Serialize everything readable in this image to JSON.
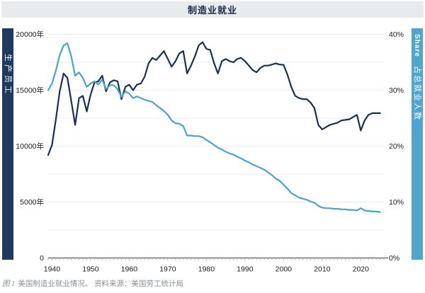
{
  "title_bar": {
    "title": "制造业就业"
  },
  "left_axis_bar": {
    "label": "生产员工",
    "color": "#1f3a5e"
  },
  "right_axis_bar": {
    "label_en": "Share",
    "label_zh": "占总就业人数",
    "color": "#4fa5cf"
  },
  "caption": {
    "figure_label": "图 1",
    "text": "美国制造业就业情况。 资料来源：美国劳工统计局"
  },
  "colors": {
    "title_bg": "#e8ebee",
    "title_text": "#1b2b4c",
    "employment_line": "#19304f",
    "share_line": "#4aa2c9",
    "gridline": "#e8edf0",
    "axis_line": "#3c3c3c",
    "tick": "#b5b5b5",
    "tick_label": "#1a1a1a"
  },
  "chart_data": {
    "type": "line",
    "title": "制造业就业",
    "x": [
      1939,
      1940,
      1941,
      1942,
      1943,
      1944,
      1945,
      1946,
      1947,
      1948,
      1949,
      1950,
      1951,
      1952,
      1953,
      1954,
      1955,
      1956,
      1957,
      1958,
      1959,
      1960,
      1961,
      1962,
      1963,
      1964,
      1965,
      1966,
      1967,
      1968,
      1969,
      1970,
      1971,
      1972,
      1973,
      1974,
      1975,
      1976,
      1977,
      1978,
      1979,
      1980,
      1981,
      1982,
      1983,
      1984,
      1985,
      1986,
      1987,
      1988,
      1989,
      1990,
      1991,
      1992,
      1993,
      1994,
      1995,
      1996,
      1997,
      1998,
      1999,
      2000,
      2001,
      2002,
      2003,
      2004,
      2005,
      2006,
      2007,
      2008,
      2009,
      2010,
      2011,
      2012,
      2013,
      2014,
      2015,
      2016,
      2017,
      2018,
      2019,
      2020,
      2021,
      2022,
      2023,
      2024,
      2025
    ],
    "series": [
      {
        "name": "生产员工",
        "axis": "left",
        "color": "#19304f",
        "values": [
          9200,
          10100,
          12400,
          14900,
          16500,
          16100,
          14000,
          11900,
          14300,
          14500,
          13100,
          14600,
          15700,
          15800,
          16300,
          14900,
          15700,
          15900,
          15800,
          14200,
          15300,
          15500,
          15000,
          15500,
          15600,
          16200,
          17400,
          17900,
          17700,
          18100,
          18500,
          17800,
          17100,
          17600,
          18300,
          18500,
          16500,
          17200,
          18000,
          19000,
          19300,
          18700,
          18600,
          17400,
          16500,
          17600,
          17800,
          17600,
          17500,
          17800,
          17900,
          17600,
          17200,
          16800,
          16600,
          17000,
          17200,
          17200,
          17300,
          17400,
          17300,
          17270,
          16400,
          15300,
          14500,
          14300,
          14200,
          14200,
          13900,
          13400,
          11900,
          11500,
          11700,
          11900,
          12000,
          12100,
          12300,
          12350,
          12400,
          12600,
          12800,
          11400,
          12300,
          12800,
          12950,
          12950,
          12950
        ]
      },
      {
        "name": "占总就业人数 (Share)",
        "axis": "right",
        "color": "#4aa2c9",
        "values": [
          30.0,
          31.2,
          33.5,
          36.3,
          38.0,
          38.4,
          36.0,
          32.6,
          33.2,
          32.2,
          30.6,
          31.2,
          31.6,
          31.0,
          31.9,
          30.2,
          30.9,
          30.9,
          30.2,
          28.8,
          29.8,
          29.4,
          28.6,
          28.9,
          28.6,
          28.3,
          28.1,
          27.9,
          27.3,
          26.8,
          26.3,
          25.6,
          24.6,
          24.1,
          24.0,
          23.6,
          21.9,
          21.9,
          21.8,
          21.8,
          21.6,
          21.1,
          20.7,
          20.2,
          19.7,
          19.4,
          19.0,
          18.7,
          18.5,
          18.1,
          17.8,
          17.4,
          17.1,
          16.7,
          16.4,
          16.1,
          15.8,
          15.3,
          14.8,
          14.2,
          13.8,
          13.1,
          12.4,
          11.6,
          11.2,
          10.8,
          10.6,
          10.4,
          10.1,
          9.9,
          9.3,
          9.0,
          8.9,
          8.9,
          8.8,
          8.8,
          8.7,
          8.7,
          8.6,
          8.6,
          8.5,
          8.9,
          8.5,
          8.4,
          8.3,
          8.3,
          8.2
        ]
      }
    ],
    "left_axis": {
      "label": "生产员工",
      "ticks": [
        "20000年",
        "15000年",
        "10000年",
        "5000年",
        "0"
      ],
      "tick_values": [
        20000,
        15000,
        10000,
        5000,
        0
      ],
      "range": [
        0,
        20000
      ],
      "gridline_step": 2500
    },
    "right_axis": {
      "label": "Share 占总就业人数",
      "ticks": [
        "40%",
        "30%",
        "20%",
        "10%",
        "0%"
      ],
      "tick_values": [
        40,
        30,
        20,
        10,
        0
      ],
      "range": [
        0,
        40
      ]
    },
    "x_axis": {
      "tick_labels": [
        "1940",
        "1950",
        "1960",
        "1970",
        "1980",
        "1990",
        "2000",
        "2010",
        "2020"
      ],
      "tick_label_values": [
        1940,
        1950,
        1960,
        1970,
        1980,
        1990,
        2000,
        2010,
        2020
      ],
      "range": [
        1939,
        2026
      ],
      "minor_tick_step": 1
    },
    "grid": true,
    "legend_position": "none"
  }
}
